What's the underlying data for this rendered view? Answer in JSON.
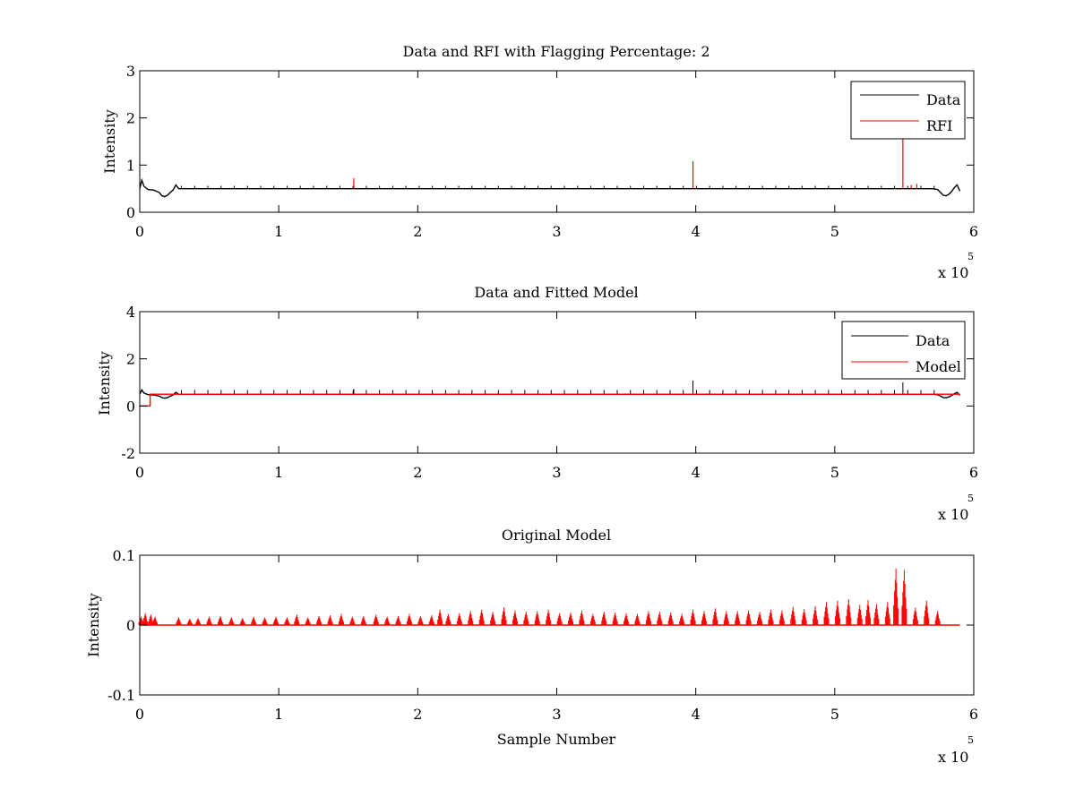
{
  "figure": {
    "background": "#ffffff",
    "axes_color": "#000000"
  },
  "chart_data": [
    {
      "type": "line",
      "title": "Data and RFI with Flagging Percentage: 2",
      "xlabel": "",
      "ylabel": "Intensity",
      "xlim": [
        0,
        600000
      ],
      "ylim": [
        0,
        3
      ],
      "xticks": [
        0,
        100000,
        200000,
        300000,
        400000,
        500000,
        600000
      ],
      "xtick_labels": [
        "0",
        "1",
        "2",
        "3",
        "4",
        "5",
        "6"
      ],
      "x_exponent_label": "x 10",
      "x_exponent_power": "5",
      "yticks": [
        0,
        1,
        2,
        3
      ],
      "ytick_labels": [
        "0",
        "1",
        "2",
        "3"
      ],
      "legend": {
        "position": "top-right",
        "entries": [
          "Data",
          "RFI"
        ]
      },
      "grid": false,
      "series": [
        {
          "name": "Data",
          "color": "#000000",
          "x": [
            0,
            1500,
            3000,
            6000,
            10000,
            14000,
            16000,
            18000,
            20000,
            22000,
            24000,
            26000,
            28000,
            60000,
            100000,
            150000,
            200000,
            300000,
            400000,
            500000,
            550000,
            570000,
            574000,
            576000,
            578000,
            580000,
            582000,
            584000,
            586000,
            588000,
            590000
          ],
          "y": [
            0.5,
            0.68,
            0.55,
            0.48,
            0.47,
            0.42,
            0.35,
            0.33,
            0.36,
            0.42,
            0.47,
            0.58,
            0.5,
            0.5,
            0.5,
            0.5,
            0.5,
            0.5,
            0.5,
            0.5,
            0.5,
            0.5,
            0.48,
            0.42,
            0.36,
            0.35,
            0.38,
            0.44,
            0.52,
            0.58,
            0.45
          ]
        },
        {
          "name": "RFI",
          "color": "#ff0000",
          "spikes": [
            {
              "x": 154000,
              "y": 0.72
            },
            {
              "x": 398000,
              "y": 1.08
            },
            {
              "x": 549000,
              "y": 1.65
            },
            {
              "x": 555000,
              "y": 0.58
            },
            {
              "x": 559000,
              "y": 0.6
            }
          ]
        }
      ]
    },
    {
      "type": "line",
      "title": "Data and Fitted Model",
      "xlabel": "",
      "ylabel": "Intensity",
      "xlim": [
        0,
        600000
      ],
      "ylim": [
        -2,
        4
      ],
      "xticks": [
        0,
        100000,
        200000,
        300000,
        400000,
        500000,
        600000
      ],
      "xtick_labels": [
        "0",
        "1",
        "2",
        "3",
        "4",
        "5",
        "6"
      ],
      "x_exponent_label": "x 10",
      "x_exponent_power": "5",
      "yticks": [
        -2,
        0,
        2,
        4
      ],
      "ytick_labels": [
        "-2",
        "0",
        "2",
        "4"
      ],
      "legend": {
        "position": "top-right",
        "entries": [
          "Data",
          "Model"
        ]
      },
      "grid": false,
      "series": [
        {
          "name": "Data",
          "color": "#000000",
          "x": [
            0,
            1500,
            3000,
            6000,
            10000,
            14000,
            16000,
            18000,
            20000,
            22000,
            24000,
            26000,
            28000,
            60000,
            100000,
            150000,
            200000,
            300000,
            400000,
            500000,
            550000,
            570000,
            574000,
            576000,
            578000,
            580000,
            582000,
            584000,
            586000,
            588000,
            590000
          ],
          "y": [
            0.5,
            0.68,
            0.55,
            0.48,
            0.47,
            0.42,
            0.35,
            0.33,
            0.36,
            0.42,
            0.47,
            0.58,
            0.5,
            0.5,
            0.5,
            0.5,
            0.5,
            0.5,
            0.5,
            0.5,
            0.5,
            0.5,
            0.48,
            0.42,
            0.36,
            0.35,
            0.38,
            0.44,
            0.52,
            0.58,
            0.45
          ]
        },
        {
          "name": "Model",
          "color": "#ff0000",
          "x": [
            0,
            7500,
            7500,
            100000,
            200000,
            300000,
            400000,
            500000,
            590000
          ],
          "y": [
            0,
            0,
            0.5,
            0.5,
            0.5,
            0.5,
            0.5,
            0.5,
            0.5
          ]
        }
      ],
      "data_spikes": [
        {
          "x": 154000,
          "y": 0.72
        },
        {
          "x": 398000,
          "y": 1.08
        },
        {
          "x": 549000,
          "y": 1.0
        }
      ]
    },
    {
      "type": "line",
      "title": "Original Model",
      "xlabel": "Sample Number",
      "ylabel": "Intensity",
      "xlim": [
        0,
        600000
      ],
      "ylim": [
        -0.1,
        0.1
      ],
      "xticks": [
        0,
        100000,
        200000,
        300000,
        400000,
        500000,
        600000
      ],
      "xtick_labels": [
        "0",
        "1",
        "2",
        "3",
        "4",
        "5",
        "6"
      ],
      "x_exponent_label": "x 10",
      "x_exponent_power": "5",
      "yticks": [
        -0.1,
        0,
        0.1
      ],
      "ytick_labels": [
        "-0.1",
        "0",
        "0.1"
      ],
      "legend": null,
      "grid": false,
      "series": [
        {
          "color": "#ff0000",
          "baseline": 0,
          "x_end": 590000,
          "bursts": [
            {
              "x": 1000,
              "y": 0.012
            },
            {
              "x": 4000,
              "y": 0.017
            },
            {
              "x": 8000,
              "y": 0.015
            },
            {
              "x": 11000,
              "y": 0.012
            },
            {
              "x": 28000,
              "y": 0.011
            },
            {
              "x": 36000,
              "y": 0.009
            },
            {
              "x": 42000,
              "y": 0.01
            },
            {
              "x": 50000,
              "y": 0.012
            },
            {
              "x": 58000,
              "y": 0.013
            },
            {
              "x": 66000,
              "y": 0.011
            },
            {
              "x": 74000,
              "y": 0.01
            },
            {
              "x": 82000,
              "y": 0.012
            },
            {
              "x": 90000,
              "y": 0.011
            },
            {
              "x": 98000,
              "y": 0.012
            },
            {
              "x": 106000,
              "y": 0.011
            },
            {
              "x": 113000,
              "y": 0.015
            },
            {
              "x": 121000,
              "y": 0.011
            },
            {
              "x": 129000,
              "y": 0.013
            },
            {
              "x": 137000,
              "y": 0.014
            },
            {
              "x": 145000,
              "y": 0.016
            },
            {
              "x": 153000,
              "y": 0.012
            },
            {
              "x": 161000,
              "y": 0.013
            },
            {
              "x": 170000,
              "y": 0.015
            },
            {
              "x": 178000,
              "y": 0.012
            },
            {
              "x": 186000,
              "y": 0.013
            },
            {
              "x": 194000,
              "y": 0.016
            },
            {
              "x": 202000,
              "y": 0.013
            },
            {
              "x": 210000,
              "y": 0.014
            },
            {
              "x": 216000,
              "y": 0.022
            },
            {
              "x": 222000,
              "y": 0.016
            },
            {
              "x": 230000,
              "y": 0.017
            },
            {
              "x": 238000,
              "y": 0.02
            },
            {
              "x": 246000,
              "y": 0.022
            },
            {
              "x": 254000,
              "y": 0.019
            },
            {
              "x": 262000,
              "y": 0.025
            },
            {
              "x": 270000,
              "y": 0.021
            },
            {
              "x": 278000,
              "y": 0.019
            },
            {
              "x": 286000,
              "y": 0.02
            },
            {
              "x": 294000,
              "y": 0.022
            },
            {
              "x": 302000,
              "y": 0.017
            },
            {
              "x": 310000,
              "y": 0.018
            },
            {
              "x": 318000,
              "y": 0.021
            },
            {
              "x": 326000,
              "y": 0.016
            },
            {
              "x": 334000,
              "y": 0.019
            },
            {
              "x": 342000,
              "y": 0.018
            },
            {
              "x": 350000,
              "y": 0.017
            },
            {
              "x": 358000,
              "y": 0.016
            },
            {
              "x": 366000,
              "y": 0.02
            },
            {
              "x": 374000,
              "y": 0.019
            },
            {
              "x": 382000,
              "y": 0.018
            },
            {
              "x": 390000,
              "y": 0.016
            },
            {
              "x": 398000,
              "y": 0.022
            },
            {
              "x": 406000,
              "y": 0.02
            },
            {
              "x": 414000,
              "y": 0.024
            },
            {
              "x": 422000,
              "y": 0.02
            },
            {
              "x": 430000,
              "y": 0.02
            },
            {
              "x": 438000,
              "y": 0.021
            },
            {
              "x": 446000,
              "y": 0.019
            },
            {
              "x": 454000,
              "y": 0.022
            },
            {
              "x": 462000,
              "y": 0.021
            },
            {
              "x": 470000,
              "y": 0.026
            },
            {
              "x": 478000,
              "y": 0.023
            },
            {
              "x": 486000,
              "y": 0.027
            },
            {
              "x": 494000,
              "y": 0.033
            },
            {
              "x": 502000,
              "y": 0.035
            },
            {
              "x": 510000,
              "y": 0.037
            },
            {
              "x": 518000,
              "y": 0.029
            },
            {
              "x": 524000,
              "y": 0.036
            },
            {
              "x": 530000,
              "y": 0.03
            },
            {
              "x": 538000,
              "y": 0.033
            },
            {
              "x": 544000,
              "y": 0.081
            },
            {
              "x": 550000,
              "y": 0.079
            },
            {
              "x": 558000,
              "y": 0.025
            },
            {
              "x": 566000,
              "y": 0.035
            },
            {
              "x": 574000,
              "y": 0.02
            }
          ]
        }
      ]
    }
  ]
}
